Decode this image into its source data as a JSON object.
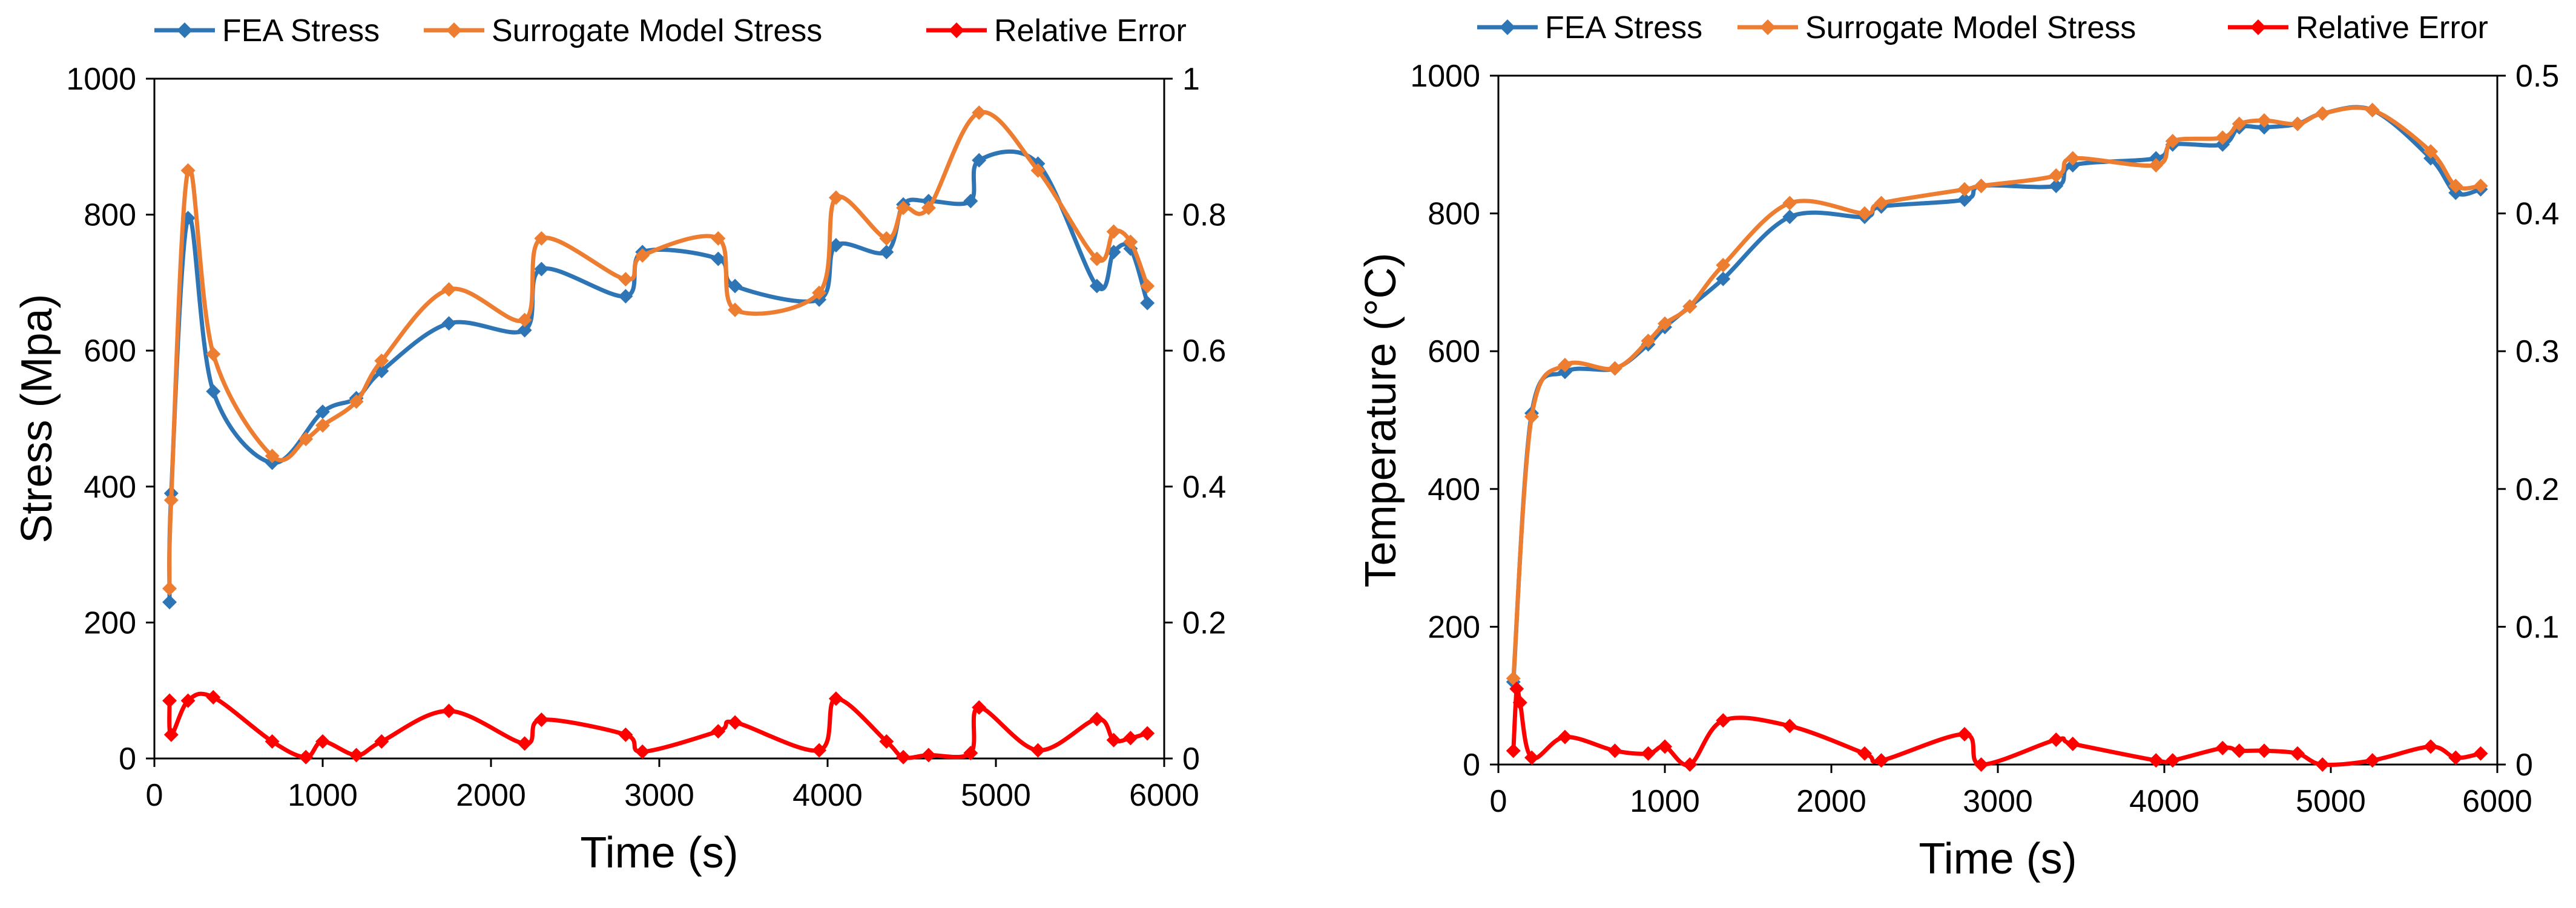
{
  "chart_data": [
    {
      "type": "line",
      "title": "",
      "xlabel": "Time (s)",
      "ylabel": "Stress (Mpa)",
      "y2label": "",
      "xlim": [
        0,
        6000
      ],
      "ylim": [
        0,
        1000
      ],
      "y2lim": [
        0,
        1
      ],
      "xticks": [
        "0",
        "1000",
        "2000",
        "3000",
        "4000",
        "5000",
        "6000"
      ],
      "yticks": [
        "0",
        "200",
        "400",
        "600",
        "800",
        "1000"
      ],
      "y2ticks": [
        "0",
        "0.2",
        "0.4",
        "0.6",
        "0.8",
        "1"
      ],
      "legend_position": "top",
      "series": [
        {
          "name": "FEA Stress",
          "axis": "left",
          "color": "#2E75B6",
          "x": [
            90,
            100,
            200,
            350,
            700,
            1000,
            1200,
            1350,
            1750,
            2200,
            2300,
            2800,
            2900,
            3350,
            3450,
            3950,
            4050,
            4350,
            4450,
            4600,
            4850,
            4900,
            5250,
            5600,
            5700,
            5800,
            5900
          ],
          "y": [
            230,
            390,
            795,
            540,
            435,
            510,
            530,
            570,
            640,
            630,
            720,
            680,
            745,
            735,
            695,
            675,
            755,
            745,
            815,
            820,
            820,
            880,
            875,
            695,
            745,
            750,
            670
          ]
        },
        {
          "name": "Surrogate Model Stress",
          "axis": "left",
          "color": "#ED7D31",
          "x": [
            90,
            100,
            200,
            350,
            700,
            900,
            1000,
            1200,
            1350,
            1750,
            2200,
            2300,
            2800,
            2900,
            3350,
            3450,
            3950,
            4050,
            4350,
            4450,
            4600,
            4900,
            5250,
            5600,
            5700,
            5800,
            5900
          ],
          "y": [
            250,
            380,
            865,
            595,
            445,
            470,
            490,
            525,
            585,
            690,
            645,
            765,
            705,
            740,
            765,
            660,
            685,
            825,
            765,
            810,
            810,
            950,
            865,
            735,
            775,
            760,
            695
          ]
        },
        {
          "name": "Relative Error",
          "axis": "right",
          "color": "#FF0000",
          "x": [
            90,
            100,
            200,
            350,
            700,
            900,
            1000,
            1200,
            1350,
            1750,
            2200,
            2300,
            2800,
            2900,
            3350,
            3450,
            3950,
            4050,
            4350,
            4450,
            4600,
            4850,
            4900,
            5250,
            5600,
            5700,
            5800,
            5900
          ],
          "y": [
            0.085,
            0.035,
            0.085,
            0.09,
            0.025,
            0.002,
            0.025,
            0.005,
            0.025,
            0.07,
            0.022,
            0.057,
            0.035,
            0.01,
            0.04,
            0.053,
            0.012,
            0.088,
            0.025,
            0.002,
            0.005,
            0.008,
            0.075,
            0.012,
            0.058,
            0.027,
            0.03,
            0.037
          ]
        }
      ]
    },
    {
      "type": "line",
      "title": "",
      "xlabel": "Time (s)",
      "ylabel": "Temperature (°C)",
      "y2label": "",
      "xlim": [
        0,
        6000
      ],
      "ylim": [
        0,
        1000
      ],
      "y2lim": [
        0,
        0.5
      ],
      "xticks": [
        "0",
        "1000",
        "2000",
        "3000",
        "4000",
        "5000",
        "6000"
      ],
      "yticks": [
        "0",
        "200",
        "400",
        "600",
        "800",
        "1000"
      ],
      "y2ticks": [
        "0",
        "0.1",
        "0.2",
        "0.3",
        "0.4",
        "0.5"
      ],
      "legend_position": "top",
      "series": [
        {
          "name": "FEA Stress",
          "axis": "left",
          "color": "#2E75B6",
          "x": [
            90,
            200,
            400,
            700,
            900,
            1000,
            1150,
            1350,
            1750,
            2200,
            2300,
            2800,
            2900,
            3350,
            3450,
            3950,
            4050,
            4350,
            4450,
            4600,
            4800,
            4950,
            5250,
            5600,
            5750,
            5900
          ],
          "y": [
            120,
            510,
            570,
            575,
            610,
            635,
            665,
            705,
            795,
            795,
            810,
            820,
            840,
            840,
            870,
            880,
            900,
            900,
            925,
            925,
            930,
            945,
            950,
            880,
            830,
            835
          ]
        },
        {
          "name": "Surrogate Model Stress",
          "axis": "left",
          "color": "#ED7D31",
          "x": [
            90,
            200,
            400,
            700,
            900,
            1000,
            1150,
            1350,
            1750,
            2200,
            2300,
            2800,
            2900,
            3350,
            3450,
            3950,
            4050,
            4350,
            4450,
            4600,
            4800,
            4950,
            5250,
            5600,
            5750,
            5900
          ],
          "y": [
            125,
            505,
            580,
            575,
            615,
            640,
            665,
            725,
            815,
            800,
            815,
            835,
            840,
            855,
            880,
            870,
            905,
            910,
            930,
            935,
            930,
            945,
            950,
            890,
            840,
            840
          ]
        },
        {
          "name": "Relative Error",
          "axis": "right",
          "color": "#FF0000",
          "x": [
            90,
            110,
            130,
            200,
            400,
            700,
            900,
            1000,
            1150,
            1350,
            1750,
            2200,
            2300,
            2800,
            2900,
            3350,
            3450,
            3950,
            4050,
            4350,
            4450,
            4600,
            4800,
            4950,
            5250,
            5600,
            5750,
            5900
          ],
          "y": [
            0.01,
            0.055,
            0.045,
            0.005,
            0.02,
            0.01,
            0.008,
            0.013,
            0.0,
            0.032,
            0.028,
            0.008,
            0.003,
            0.022,
            0.0,
            0.018,
            0.015,
            0.003,
            0.003,
            0.012,
            0.01,
            0.01,
            0.008,
            0.0,
            0.003,
            0.013,
            0.005,
            0.008
          ]
        }
      ]
    }
  ]
}
